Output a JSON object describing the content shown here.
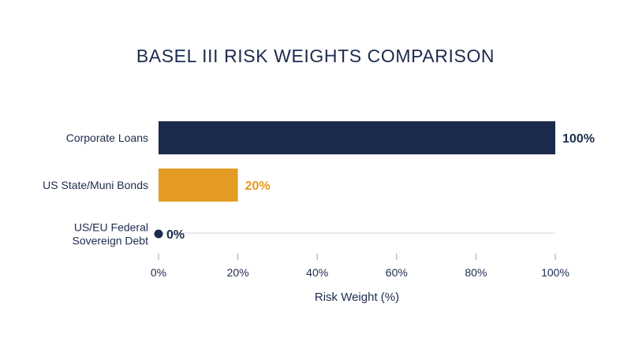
{
  "chart_data": {
    "type": "bar",
    "orientation": "horizontal",
    "title": "BASEL III RISK WEIGHTS COMPARISON",
    "xlabel": "Risk Weight (%)",
    "ylabel": "",
    "xlim": [
      0,
      100
    ],
    "x_ticks": [
      "0%",
      "20%",
      "40%",
      "60%",
      "80%",
      "100%"
    ],
    "categories": [
      [
        "Corporate Loans"
      ],
      [
        "US State/Muni Bonds"
      ],
      [
        "US/EU Federal",
        "Sovereign Debt"
      ]
    ],
    "values": [
      100,
      20,
      0
    ],
    "value_labels": [
      "100%",
      "20%",
      "0%"
    ],
    "colors": [
      "#1c2b4d",
      "#e39b24",
      "#1c2b4d"
    ],
    "grid": false
  }
}
